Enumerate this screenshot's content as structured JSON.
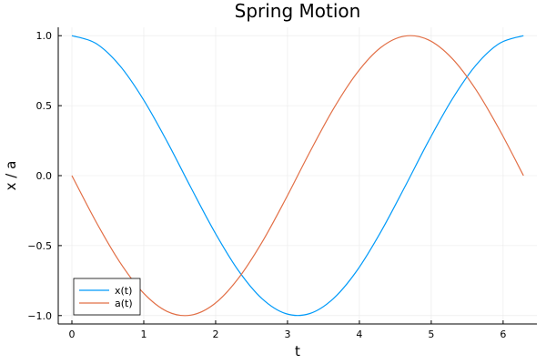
{
  "chart_data": {
    "type": "line",
    "title": "Spring Motion",
    "xlabel": "t",
    "ylabel": "x / a",
    "xlim": [
      -0.19,
      6.47
    ],
    "ylim": [
      -1.06,
      1.06
    ],
    "xticks": [
      0,
      1,
      2,
      3,
      4,
      5,
      6
    ],
    "xtick_labels": [
      "0",
      "1",
      "2",
      "3",
      "4",
      "5",
      "6"
    ],
    "yticks": [
      -1.0,
      -0.5,
      0.0,
      0.5,
      1.0
    ],
    "ytick_labels": [
      "−1.0",
      "−0.5",
      "0.0",
      "0.5",
      "1.0"
    ],
    "grid": true,
    "legend_position": "bottom-left",
    "x": [
      0,
      0.3307,
      0.6614,
      0.9921,
      1.3228,
      1.6535,
      1.9842,
      2.3149,
      2.6456,
      2.9763,
      3.307,
      3.6377,
      3.9684,
      4.2991,
      4.6298,
      4.9605,
      5.2912,
      5.6219,
      5.9526,
      6.2832
    ],
    "series": [
      {
        "name": "x(t)",
        "color": "#009af9",
        "values": [
          1.0,
          0.946,
          0.789,
          0.546,
          0.245,
          -0.083,
          -0.401,
          -0.677,
          -0.879,
          -0.986,
          -0.986,
          -0.879,
          -0.677,
          -0.401,
          -0.083,
          0.245,
          0.546,
          0.789,
          0.946,
          1.0
        ]
      },
      {
        "name": "a(t)",
        "color": "#e26f46",
        "values": [
          0.0,
          -0.325,
          -0.614,
          -0.837,
          -0.97,
          -0.997,
          -0.916,
          -0.735,
          -0.476,
          -0.165,
          0.165,
          0.476,
          0.735,
          0.916,
          0.997,
          0.97,
          0.837,
          0.614,
          0.325,
          0.0
        ]
      }
    ]
  }
}
